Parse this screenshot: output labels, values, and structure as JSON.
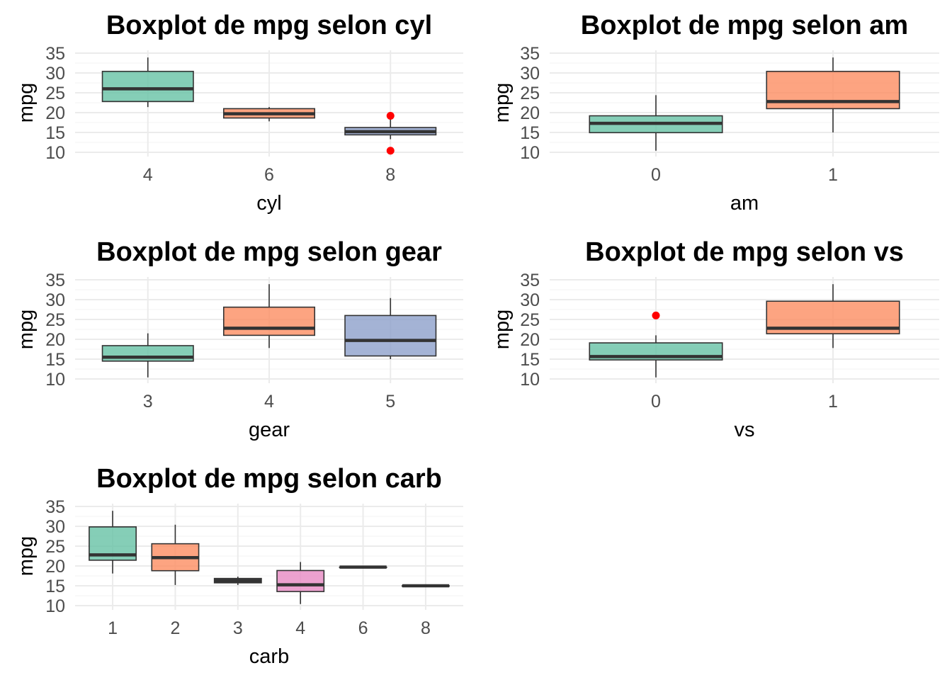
{
  "chart_data": [
    {
      "type": "boxplot",
      "title": "Boxplot de mpg selon cyl",
      "xlabel": "cyl",
      "ylabel": "mpg",
      "ylim": [
        10,
        35
      ],
      "yticks": [
        "10",
        "15",
        "20",
        "25",
        "30",
        "35"
      ],
      "grid": true,
      "categories": [
        "4",
        "6",
        "8"
      ],
      "boxes": [
        {
          "lower": 21.4,
          "q1": 22.8,
          "median": 26.0,
          "q3": 30.4,
          "upper": 33.9,
          "outliers": [],
          "color": "#66c2a5"
        },
        {
          "lower": 17.8,
          "q1": 18.65,
          "median": 19.7,
          "q3": 21.0,
          "upper": 21.4,
          "outliers": [],
          "color": "#fc8d62"
        },
        {
          "lower": 13.3,
          "q1": 14.4,
          "median": 15.2,
          "q3": 16.25,
          "upper": 18.7,
          "outliers": [
            19.2,
            10.4
          ],
          "color": "#8da0cb"
        }
      ]
    },
    {
      "type": "boxplot",
      "title": "Boxplot de mpg selon am",
      "xlabel": "am",
      "ylabel": "mpg",
      "ylim": [
        10,
        35
      ],
      "yticks": [
        "10",
        "15",
        "20",
        "25",
        "30",
        "35"
      ],
      "grid": true,
      "categories": [
        "0",
        "1"
      ],
      "boxes": [
        {
          "lower": 10.4,
          "q1": 14.95,
          "median": 17.3,
          "q3": 19.2,
          "upper": 24.4,
          "outliers": [],
          "color": "#66c2a5"
        },
        {
          "lower": 15.0,
          "q1": 21.0,
          "median": 22.8,
          "q3": 30.4,
          "upper": 33.9,
          "outliers": [],
          "color": "#fc8d62"
        }
      ]
    },
    {
      "type": "boxplot",
      "title": "Boxplot de mpg selon gear",
      "xlabel": "gear",
      "ylabel": "mpg",
      "ylim": [
        10,
        35
      ],
      "yticks": [
        "10",
        "15",
        "20",
        "25",
        "30",
        "35"
      ],
      "grid": true,
      "categories": [
        "3",
        "4",
        "5"
      ],
      "boxes": [
        {
          "lower": 10.4,
          "q1": 14.5,
          "median": 15.5,
          "q3": 18.4,
          "upper": 21.5,
          "outliers": [],
          "color": "#66c2a5"
        },
        {
          "lower": 17.8,
          "q1": 21.0,
          "median": 22.8,
          "q3": 28.1,
          "upper": 33.9,
          "outliers": [],
          "color": "#fc8d62"
        },
        {
          "lower": 15.0,
          "q1": 15.8,
          "median": 19.7,
          "q3": 26.0,
          "upper": 30.4,
          "outliers": [],
          "color": "#8da0cb"
        }
      ]
    },
    {
      "type": "boxplot",
      "title": "Boxplot de mpg selon vs",
      "xlabel": "vs",
      "ylabel": "mpg",
      "ylim": [
        10,
        35
      ],
      "yticks": [
        "10",
        "15",
        "20",
        "25",
        "30",
        "35"
      ],
      "grid": true,
      "categories": [
        "0",
        "1"
      ],
      "boxes": [
        {
          "lower": 10.4,
          "q1": 14.8,
          "median": 15.65,
          "q3": 19.1,
          "upper": 21.0,
          "outliers": [
            26.0
          ],
          "color": "#66c2a5"
        },
        {
          "lower": 17.8,
          "q1": 21.4,
          "median": 22.8,
          "q3": 29.6,
          "upper": 33.9,
          "outliers": [],
          "color": "#fc8d62"
        }
      ]
    },
    {
      "type": "boxplot",
      "title": "Boxplot de mpg selon carb",
      "xlabel": "carb",
      "ylabel": "mpg",
      "ylim": [
        10,
        35
      ],
      "yticks": [
        "10",
        "15",
        "20",
        "25",
        "30",
        "35"
      ],
      "grid": true,
      "categories": [
        "1",
        "2",
        "3",
        "4",
        "6",
        "8"
      ],
      "boxes": [
        {
          "lower": 18.1,
          "q1": 21.45,
          "median": 22.8,
          "q3": 29.85,
          "upper": 33.9,
          "outliers": [],
          "color": "#66c2a5"
        },
        {
          "lower": 15.2,
          "q1": 18.8,
          "median": 22.1,
          "q3": 25.6,
          "upper": 30.4,
          "outliers": [],
          "color": "#fc8d62"
        },
        {
          "lower": 15.2,
          "q1": 15.75,
          "median": 16.3,
          "q3": 16.85,
          "upper": 17.3,
          "outliers": [],
          "color": "#8da0cb"
        },
        {
          "lower": 10.4,
          "q1": 13.55,
          "median": 15.25,
          "q3": 18.85,
          "upper": 21.0,
          "outliers": [],
          "color": "#e78ac3"
        },
        {
          "lower": 19.7,
          "q1": 19.7,
          "median": 19.7,
          "q3": 19.7,
          "upper": 19.7,
          "outliers": [],
          "color": "#a6d854"
        },
        {
          "lower": 15.0,
          "q1": 15.0,
          "median": 15.0,
          "q3": 15.0,
          "upper": 15.0,
          "outliers": [],
          "color": "#ffd92f"
        }
      ]
    }
  ]
}
